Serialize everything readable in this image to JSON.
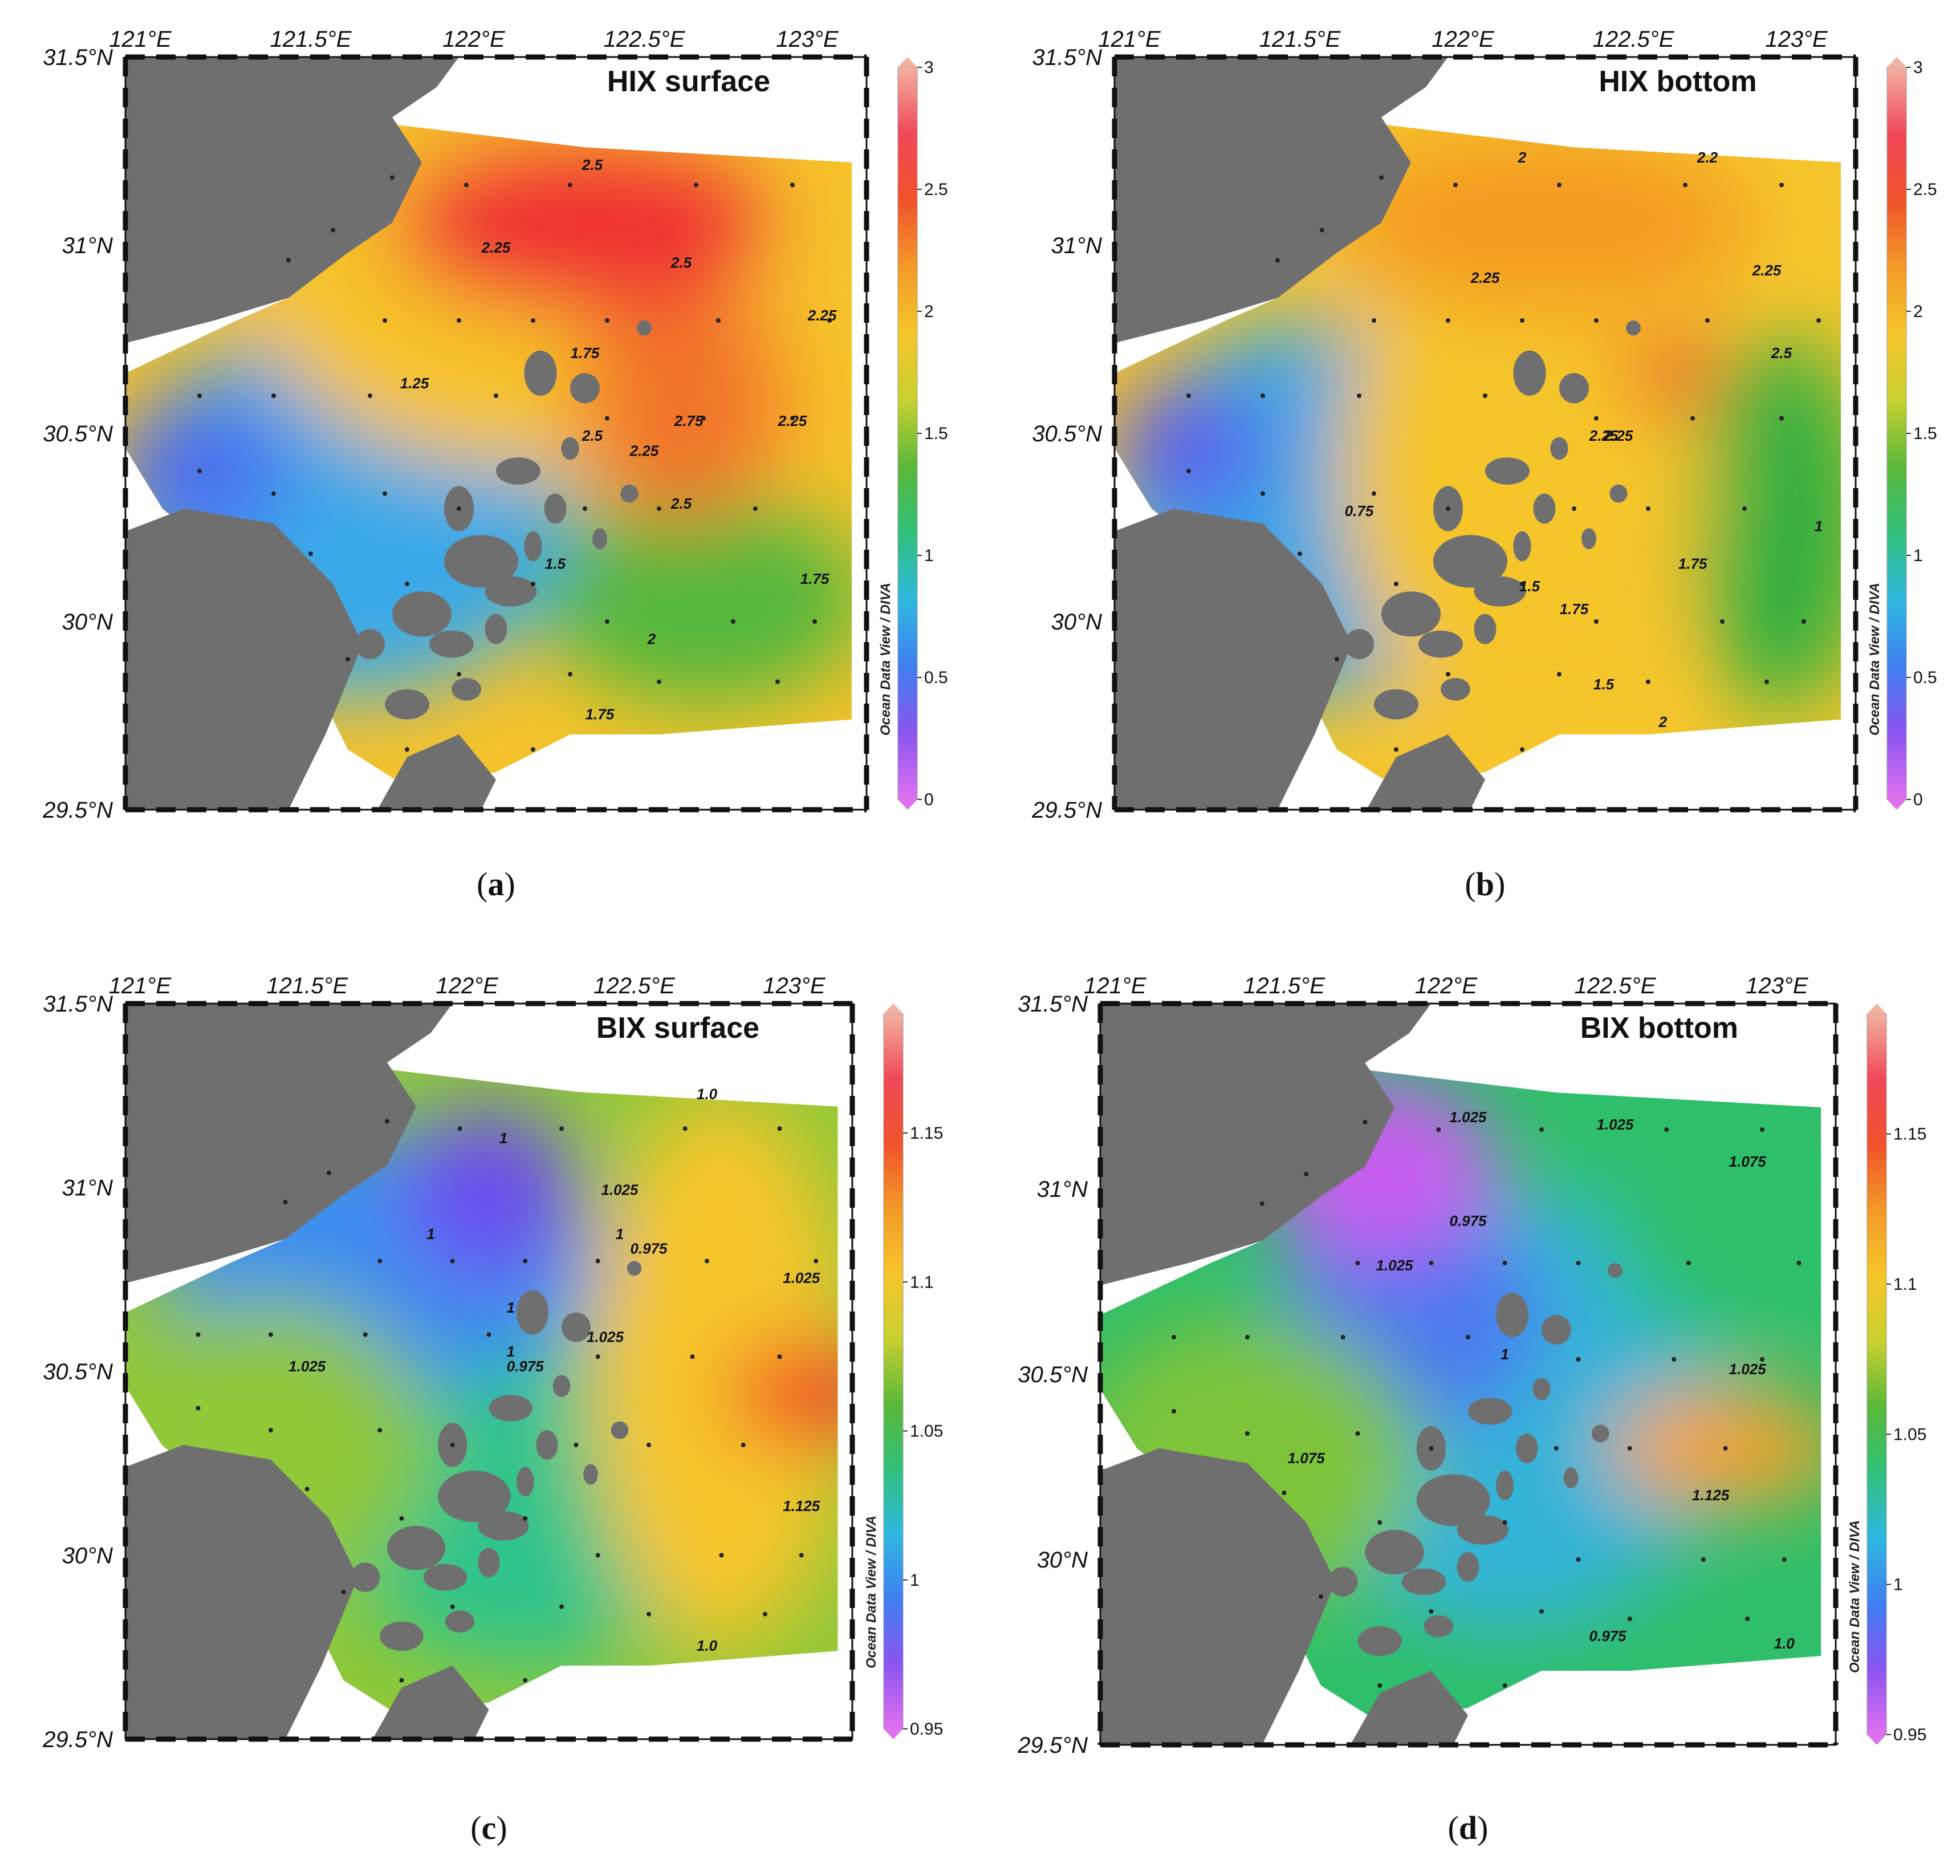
{
  "figure": {
    "panels": [
      {
        "id": "a",
        "title": "HIX  surface",
        "caption_letter": "a",
        "colorbar_ticks": [
          "0",
          "0.5",
          "1",
          "1.5",
          "2",
          "2.5",
          "3"
        ],
        "colorbar_range": [
          0,
          3
        ],
        "contour_labels": [
          "2.5",
          "2.5",
          "2.25",
          "2.25",
          "1.75",
          "1.25",
          "2.5",
          "2.75",
          "2.25",
          "2.25",
          "2.5",
          "1.75",
          "2",
          "1.75",
          "1.5"
        ],
        "blobs": [
          {
            "value": 2.7,
            "color": "#f03030"
          },
          {
            "value": 2.5,
            "color": "#f2762a"
          },
          {
            "value": 2.1,
            "color": "#f6c22a"
          },
          {
            "value": 1.6,
            "color": "#52b83c"
          },
          {
            "value": 1.0,
            "color": "#3aa9e8"
          },
          {
            "value": 0.7,
            "color": "#4b6ef0"
          }
        ]
      },
      {
        "id": "b",
        "title": "HIX  bottom",
        "caption_letter": "b",
        "colorbar_ticks": [
          "0",
          "0.5",
          "1",
          "1.5",
          "2",
          "2.5",
          "3"
        ],
        "colorbar_range": [
          0,
          3
        ],
        "contour_labels": [
          "2",
          "2.2",
          "2.25",
          "2.25",
          "2.25",
          "2.5",
          "2.25",
          "0.75",
          "1.5",
          "1.75",
          "1.75",
          "1.5",
          "2",
          "1"
        ],
        "blobs": [
          {
            "value": 2.5,
            "color": "#f0452a"
          },
          {
            "value": 2.2,
            "color": "#f49b22"
          },
          {
            "value": 2.0,
            "color": "#f5c52c"
          },
          {
            "value": 1.5,
            "color": "#35b040"
          },
          {
            "value": 0.9,
            "color": "#36a6e6"
          },
          {
            "value": 0.6,
            "color": "#5a5fee"
          }
        ]
      },
      {
        "id": "c",
        "title": "BIX  surface",
        "caption_letter": "c",
        "colorbar_ticks": [
          "0.95",
          "1",
          "1.05",
          "1.1",
          "1.15"
        ],
        "colorbar_range": [
          0.95,
          1.19
        ],
        "contour_labels": [
          "1",
          "1.025",
          "1",
          "1",
          "0.975",
          "1.025",
          "1.025",
          "1",
          "1",
          "0.975",
          "1.025",
          "1.125",
          "1.0",
          "1.0"
        ],
        "blobs": [
          {
            "value": 1.15,
            "color": "#f04428"
          },
          {
            "value": 1.1,
            "color": "#f6c52a"
          },
          {
            "value": 1.07,
            "color": "#90c838"
          },
          {
            "value": 1.04,
            "color": "#2ec48c"
          },
          {
            "value": 1.01,
            "color": "#3a8ef0"
          },
          {
            "value": 0.98,
            "color": "#6a4ef0"
          }
        ]
      },
      {
        "id": "d",
        "title": "BIX  bottom",
        "caption_letter": "d",
        "colorbar_ticks": [
          "0.95",
          "1",
          "1.05",
          "1.1",
          "1.15"
        ],
        "colorbar_range": [
          0.95,
          1.19
        ],
        "contour_labels": [
          "1.025",
          "1.025",
          "1.075",
          "0.975",
          "1.025",
          "1",
          "1.025",
          "1.075",
          "1.125",
          "0.975",
          "1.0"
        ],
        "blobs": [
          {
            "value": 1.11,
            "color": "#f6a32a"
          },
          {
            "value": 1.07,
            "color": "#7ec43a"
          },
          {
            "value": 1.05,
            "color": "#2fbf6a"
          },
          {
            "value": 1.02,
            "color": "#30b4d8"
          },
          {
            "value": 1.0,
            "color": "#4b78f0"
          },
          {
            "value": 0.96,
            "color": "#c85cf0"
          }
        ]
      }
    ],
    "lon_ticks": [
      "121°E",
      "121.5°E",
      "122°E",
      "122.5°E",
      "123°E"
    ],
    "lat_ticks": [
      "31.5°N",
      "31°N",
      "30.5°N",
      "30°N",
      "29.5°N"
    ],
    "colorbar_source": "Ocean Data View / DIVA",
    "colors": {
      "land": "#6f6f6f",
      "frame": "#111111",
      "grid": "#777777"
    },
    "icons": {
      "station": "dot-marker",
      "colorbar_end": "triangle-arrow"
    }
  }
}
